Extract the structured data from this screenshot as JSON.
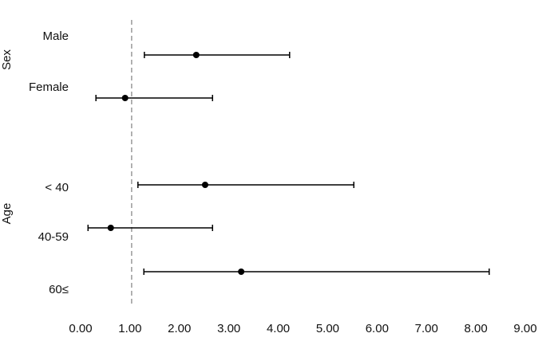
{
  "chart_data": {
    "type": "forest",
    "groups": [
      {
        "label": "Sex",
        "categories": [
          "Male",
          "Female"
        ],
        "values": [
          2.34,
          0.9
        ],
        "lower": [
          1.29,
          0.31
        ],
        "upper": [
          4.23,
          2.67
        ]
      },
      {
        "label": "Age",
        "categories": [
          "< 40",
          "40-59",
          "60≤"
        ],
        "values": [
          2.52,
          0.61,
          3.25
        ],
        "lower": [
          1.16,
          0.15,
          1.28
        ],
        "upper": [
          5.53,
          2.67,
          8.27
        ]
      }
    ],
    "reference": 1,
    "xlim": [
      0,
      9
    ],
    "xticks": [
      {
        "value": 0,
        "label": "0.00"
      },
      {
        "value": 1,
        "label": "1.00"
      },
      {
        "value": 2,
        "label": "2.00"
      },
      {
        "value": 3,
        "label": "3.00"
      },
      {
        "value": 4,
        "label": "4.00"
      },
      {
        "value": 5,
        "label": "5.00"
      },
      {
        "value": 6,
        "label": "6.00"
      },
      {
        "value": 7,
        "label": "7.00"
      },
      {
        "value": 8,
        "label": "8.00"
      },
      {
        "value": 9,
        "label": "9.00"
      }
    ],
    "color": "#000000"
  }
}
